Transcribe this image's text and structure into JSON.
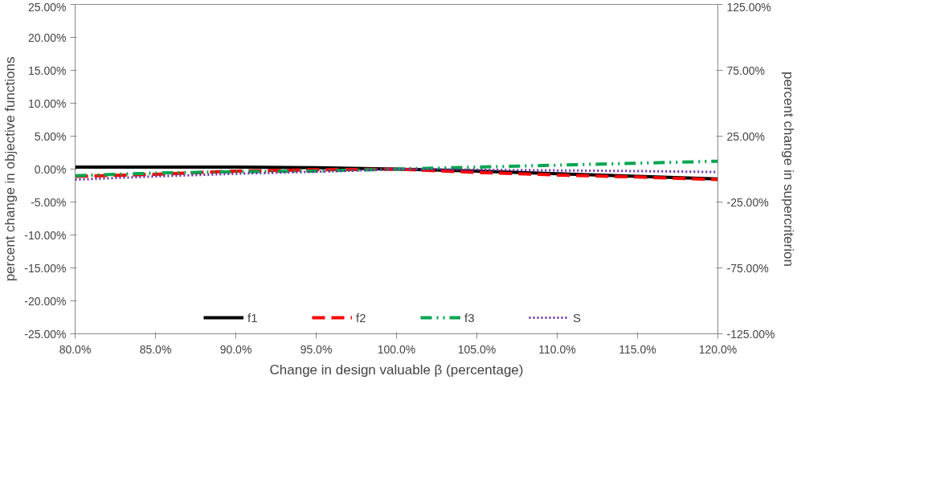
{
  "chart_data": {
    "type": "line",
    "xlabel": "Change in design valuable β (percentage)",
    "ylabel": "percent change in objective functions",
    "y2label": "percent change in supercriterion",
    "x": [
      80,
      85,
      90,
      95,
      100,
      105,
      110,
      115,
      120
    ],
    "series": [
      {
        "name": "f1",
        "color": "#000000",
        "line_style": "solid",
        "values": [
          0.3,
          0.3,
          0.3,
          0.2,
          0,
          -0.3,
          -0.7,
          -1.1,
          -1.5
        ]
      },
      {
        "name": "f2",
        "color": "#ff0000",
        "line_style": "dashed",
        "values": [
          -1.1,
          -0.8,
          -0.3,
          -0.1,
          0,
          -0.5,
          -0.9,
          -1.2,
          -1.6
        ]
      },
      {
        "name": "f3",
        "color": "#00a550",
        "line_style": "dashdot",
        "values": [
          -1.0,
          -0.6,
          -0.4,
          -0.3,
          0,
          0.3,
          0.6,
          0.9,
          1.2
        ]
      },
      {
        "name": "S",
        "color": "#7030a0",
        "line_style": "dotted",
        "axis": "y2",
        "values": [
          -8,
          -5.5,
          -3.5,
          -2,
          0,
          -0.5,
          -1,
          -1.5,
          -2.2
        ]
      }
    ],
    "xlim": [
      80,
      120
    ],
    "xticks": [
      {
        "value": 80,
        "label": "80.0%"
      },
      {
        "value": 85,
        "label": "85.0%"
      },
      {
        "value": 90,
        "label": "90.0%"
      },
      {
        "value": 95,
        "label": "95.0%"
      },
      {
        "value": 100,
        "label": "100.0%"
      },
      {
        "value": 105,
        "label": "105.0%"
      },
      {
        "value": 110,
        "label": "110.0%"
      },
      {
        "value": 115,
        "label": "115.0%"
      },
      {
        "value": 120,
        "label": "120.0%"
      }
    ],
    "ylim": [
      -25,
      25
    ],
    "yticks": [
      {
        "value": -25,
        "label": "-25.00%"
      },
      {
        "value": -20,
        "label": "-20.00%"
      },
      {
        "value": -15,
        "label": "-15.00%"
      },
      {
        "value": -10,
        "label": "-10.00%"
      },
      {
        "value": -5,
        "label": "-5.00%"
      },
      {
        "value": 0,
        "label": "0.00%"
      },
      {
        "value": 5,
        "label": "5.00%"
      },
      {
        "value": 10,
        "label": "10.00%"
      },
      {
        "value": 15,
        "label": "15.00%"
      },
      {
        "value": 20,
        "label": "20.00%"
      },
      {
        "value": 25,
        "label": "25.00%"
      }
    ],
    "y2lim": [
      -125,
      125
    ],
    "y2ticks": [
      {
        "value": -125,
        "label": "-125.00%"
      },
      {
        "value": -75,
        "label": "-75.00%"
      },
      {
        "value": -25,
        "label": "-25.00%"
      },
      {
        "value": 25,
        "label": "25.00%"
      },
      {
        "value": 75,
        "label": "75.00%"
      },
      {
        "value": 125,
        "label": "125.00%"
      }
    ],
    "grid": false,
    "legend": "bottom"
  }
}
